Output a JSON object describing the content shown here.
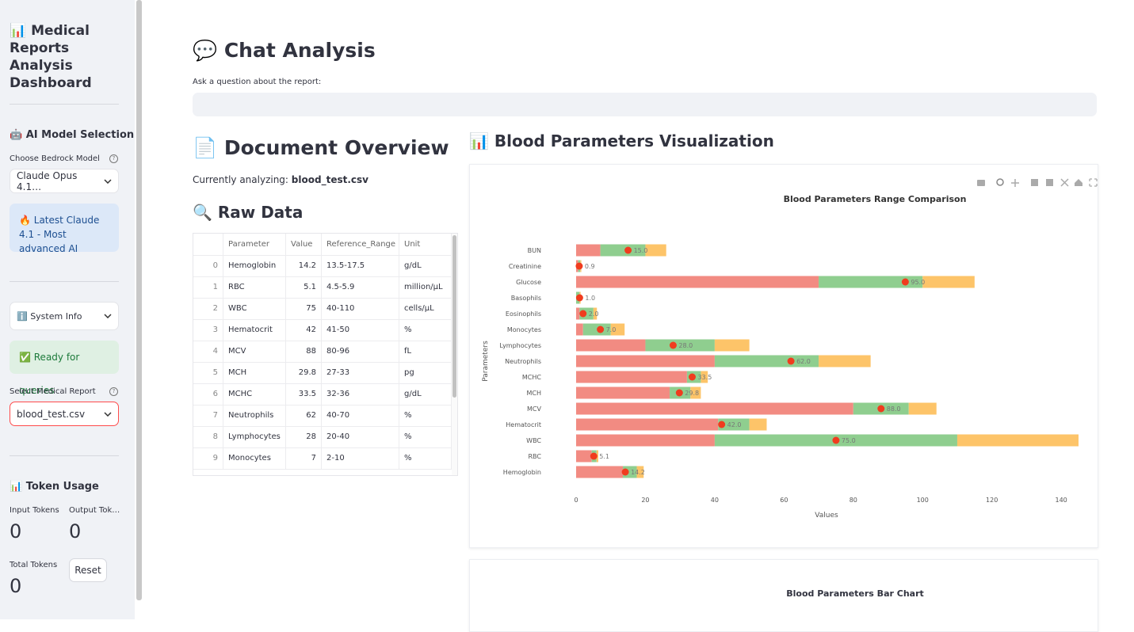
{
  "sidebar": {
    "title": "📊 Medical Reports Analysis Dashboard",
    "model_section": "🤖 AI Model Selection",
    "model_label": "Choose Bedrock Model",
    "model_value": "Claude Opus 4.1…",
    "model_info": "🔥 Latest Claude 4.1 - Most advanced AI",
    "system_info": "ℹ️ System Info",
    "status": "✅ Ready for queries",
    "report_label": "Select Medical Report",
    "report_value": "blood_test.csv",
    "token_section": "📊 Token Usage",
    "input_tokens_label": "Input Tokens",
    "input_tokens": 0,
    "output_tokens_label": "Output Tok…",
    "output_tokens": 0,
    "total_tokens_label": "Total Tokens",
    "total_tokens": 0,
    "reset": "Reset"
  },
  "main": {
    "chat_title": "💬 Chat Analysis",
    "chat_prompt": "Ask a question about the report:",
    "overview_title": "📄 Document Overview",
    "analyzing_label": "Currently analyzing:",
    "analyzing_file": "blood_test.csv",
    "raw_data_title": "🔍 Raw Data",
    "viz_title": "📊 Blood Parameters Visualization",
    "second_chart_title": "Blood Parameters Bar Chart"
  },
  "table": {
    "columns": [
      "Parameter",
      "Value",
      "Reference_Range",
      "Unit"
    ],
    "rows": [
      [
        0,
        "Hemoglobin",
        14.2,
        "13.5-17.5",
        "g/dL"
      ],
      [
        1,
        "RBC",
        5.1,
        "4.5-5.9",
        "million/µL"
      ],
      [
        2,
        "WBC",
        75,
        "40-110",
        "cells/µL"
      ],
      [
        3,
        "Hematocrit",
        42,
        "41-50",
        "%"
      ],
      [
        4,
        "MCV",
        88,
        "80-96",
        "fL"
      ],
      [
        5,
        "MCH",
        29.8,
        "27-33",
        "pg"
      ],
      [
        6,
        "MCHC",
        33.5,
        "32-36",
        "g/dL"
      ],
      [
        7,
        "Neutrophils",
        62,
        "40-70",
        "%"
      ],
      [
        8,
        "Lymphocytes",
        28,
        "20-40",
        "%"
      ],
      [
        9,
        "Monocytes",
        7,
        "2-10",
        "%"
      ]
    ]
  },
  "chart_data": {
    "type": "bar",
    "orientation": "horizontal",
    "stacked": true,
    "title": "Blood Parameters Range Comparison",
    "x_label": "Values",
    "y_label": "Parameters",
    "categories": [
      "Hemoglobin",
      "RBC",
      "WBC",
      "Hematocrit",
      "MCV",
      "MCH",
      "MCHC",
      "Neutrophils",
      "Lymphocytes",
      "Monocytes",
      "Eosinophils",
      "Basophils",
      "Glucose",
      "Creatinine",
      "BUN"
    ],
    "series": [
      {
        "color": "#f28b82",
        "values": [
          13.5,
          4.5,
          40,
          41,
          80,
          27,
          32,
          40,
          20,
          2,
          1,
          0,
          70,
          0.6,
          7
        ]
      },
      {
        "color": "#8fce8f",
        "values": [
          4,
          1.4,
          70,
          9,
          16,
          6,
          4,
          30,
          20,
          8,
          4,
          1,
          30,
          0.6,
          13
        ]
      },
      {
        "color": "#fdc469",
        "values": [
          2,
          0.5,
          35,
          5,
          8,
          3,
          2,
          15,
          10,
          4,
          1,
          0.3,
          15,
          0.3,
          6
        ]
      }
    ],
    "markers": {
      "color": "#f03c1e",
      "values": [
        14.2,
        5.1,
        75,
        42,
        88,
        29.8,
        33.5,
        62,
        28,
        7,
        2,
        1,
        95,
        0.9,
        15
      ],
      "value_labels": [
        "14.2",
        "5.1",
        "75.0",
        "42.0",
        "88.0",
        "29.8",
        "33.5",
        "62.0",
        "28.0",
        "7.0",
        "2.0",
        "1.0",
        "95.0",
        "0.9",
        "15.0"
      ]
    },
    "xlim": [
      0,
      145
    ],
    "xticks": [
      0,
      20,
      40,
      60,
      80,
      100,
      120,
      140
    ],
    "grid": false
  }
}
